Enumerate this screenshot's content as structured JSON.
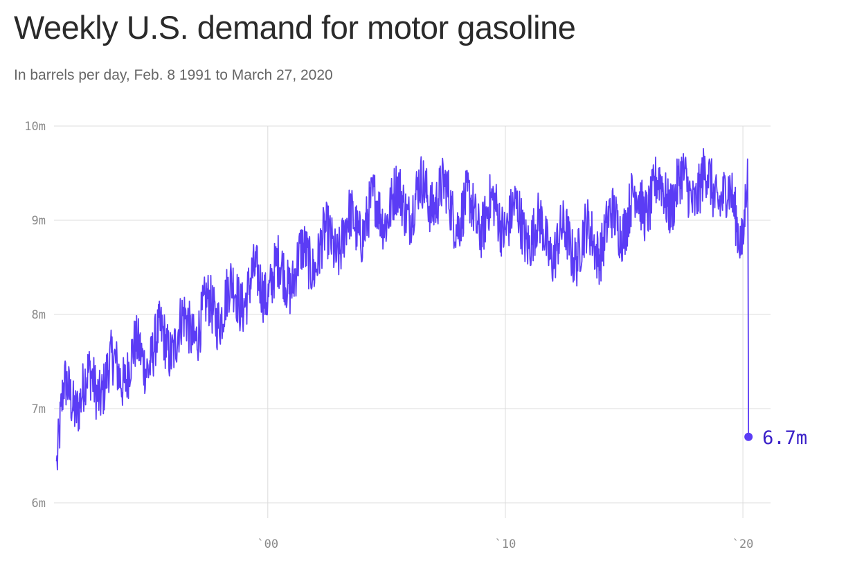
{
  "colors": {
    "line": "#5b3cf5",
    "grid": "#dcdcdc",
    "end_label": "#3a20c8"
  },
  "title": "Weekly U.S. demand for motor gasoline",
  "subtitle": "In barrels per day, Feb. 8 1991 to March 27, 2020",
  "chart_data": {
    "type": "line",
    "title": "Weekly U.S. demand for motor gasoline",
    "subtitle": "In barrels per day, Feb. 8 1991 to March 27, 2020",
    "xlabel": "",
    "ylabel": "",
    "grid": true,
    "xlim": [
      "1991-01-01",
      "2021-03-01"
    ],
    "ylim": [
      6000000,
      10000000
    ],
    "y_ticks": [
      {
        "value": 10000000,
        "label": "10m"
      },
      {
        "value": 9000000,
        "label": "9m"
      },
      {
        "value": 8000000,
        "label": "8m"
      },
      {
        "value": 7000000,
        "label": "7m"
      },
      {
        "value": 6000000,
        "label": "6m"
      }
    ],
    "x_ticks": [
      {
        "value": "2000-01-01",
        "label": "`00"
      },
      {
        "value": "2010-01-01",
        "label": "`10"
      },
      {
        "value": "2020-01-01",
        "label": "`20"
      }
    ],
    "series": [
      {
        "frequency": "weekly",
        "start": "1991-02-08",
        "end": "2020-03-27",
        "trend": [
          {
            "date": "1991-02-08",
            "value": 6440000
          },
          {
            "date": "1991-06-01",
            "value": 7100000
          },
          {
            "date": "1992-01-01",
            "value": 7150000
          },
          {
            "date": "1993-01-01",
            "value": 7300000
          },
          {
            "date": "1994-01-01",
            "value": 7450000
          },
          {
            "date": "1995-01-01",
            "value": 7600000
          },
          {
            "date": "1996-01-01",
            "value": 7750000
          },
          {
            "date": "1997-01-01",
            "value": 7900000
          },
          {
            "date": "1998-01-01",
            "value": 8100000
          },
          {
            "date": "1999-01-01",
            "value": 8250000
          },
          {
            "date": "2000-01-01",
            "value": 8350000
          },
          {
            "date": "2001-01-01",
            "value": 8450000
          },
          {
            "date": "2002-01-01",
            "value": 8650000
          },
          {
            "date": "2003-01-01",
            "value": 8800000
          },
          {
            "date": "2004-01-01",
            "value": 9000000
          },
          {
            "date": "2005-01-01",
            "value": 9150000
          },
          {
            "date": "2006-01-01",
            "value": 9200000
          },
          {
            "date": "2007-01-01",
            "value": 9300000
          },
          {
            "date": "2008-01-01",
            "value": 9100000
          },
          {
            "date": "2009-01-01",
            "value": 9050000
          },
          {
            "date": "2010-01-01",
            "value": 9050000
          },
          {
            "date": "2011-01-01",
            "value": 8900000
          },
          {
            "date": "2012-01-01",
            "value": 8750000
          },
          {
            "date": "2013-01-01",
            "value": 8750000
          },
          {
            "date": "2014-01-01",
            "value": 8800000
          },
          {
            "date": "2015-01-01",
            "value": 9050000
          },
          {
            "date": "2016-01-01",
            "value": 9250000
          },
          {
            "date": "2017-01-01",
            "value": 9300000
          },
          {
            "date": "2018-01-01",
            "value": 9350000
          },
          {
            "date": "2019-01-01",
            "value": 9350000
          },
          {
            "date": "2020-01-01",
            "value": 8900000
          },
          {
            "date": "2020-03-13",
            "value": 9650000
          },
          {
            "date": "2020-03-20",
            "value": 8750000
          },
          {
            "date": "2020-03-27",
            "value": 6700000
          }
        ],
        "weekly_swing": 300000
      }
    ],
    "annotations": [
      {
        "date": "2020-03-27",
        "value": 6700000,
        "label": "6.7m"
      }
    ]
  }
}
